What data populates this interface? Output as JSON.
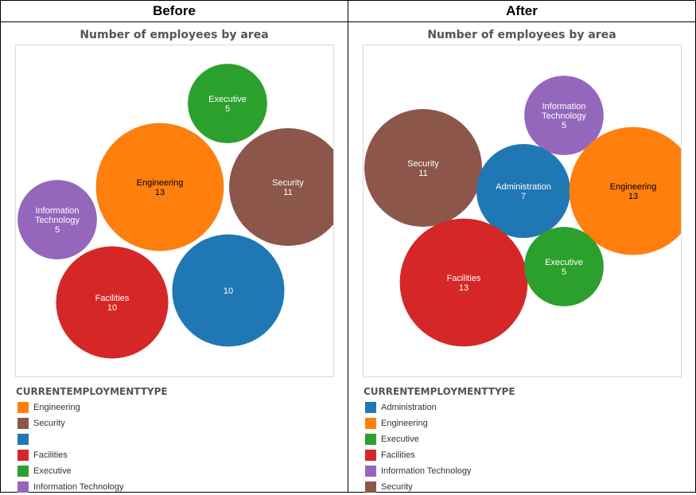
{
  "panels": [
    {
      "header": "Before",
      "chart_title": "Number of employees by area",
      "legend_title": "CURRENTEMPLOYMENTTYPE",
      "legend": [
        {
          "label": "Engineering",
          "color": "#ff7f0e"
        },
        {
          "label": "Security",
          "color": "#8c564b"
        },
        {
          "label": "",
          "color": "#1f77b4"
        },
        {
          "label": "Facilities",
          "color": "#d62728"
        },
        {
          "label": "Executive",
          "color": "#2ca02c"
        },
        {
          "label": "Information Technology",
          "color": "#9467bd"
        }
      ]
    },
    {
      "header": "After",
      "chart_title": "Number of employees by area",
      "legend_title": "CURRENTEMPLOYMENTTYPE",
      "legend": [
        {
          "label": "Administration",
          "color": "#1f77b4"
        },
        {
          "label": "Engineering",
          "color": "#ff7f0e"
        },
        {
          "label": "Executive",
          "color": "#2ca02c"
        },
        {
          "label": "Facilities",
          "color": "#d62728"
        },
        {
          "label": "Information Technology",
          "color": "#9467bd"
        },
        {
          "label": "Security",
          "color": "#8c564b"
        }
      ]
    }
  ],
  "chart_data": [
    {
      "type": "bubble",
      "title": "Number of employees by area",
      "series": [
        {
          "name": "Executive",
          "value": 5,
          "color": "#2ca02c",
          "label_lines": [
            "Executive",
            "5"
          ],
          "label_color": "#ffffff"
        },
        {
          "name": "Engineering",
          "value": 13,
          "color": "#ff7f0e",
          "label_lines": [
            "Engineering",
            "13"
          ],
          "label_color": "#000000"
        },
        {
          "name": "Security",
          "value": 11,
          "color": "#8c564b",
          "label_lines": [
            "Security",
            "11"
          ],
          "label_color": "#ffffff"
        },
        {
          "name": "Information Technology",
          "value": 5,
          "color": "#9467bd",
          "label_lines": [
            "Information",
            "Technology",
            "5"
          ],
          "label_color": "#ffffff"
        },
        {
          "name": "Facilities",
          "value": 10,
          "color": "#d62728",
          "label_lines": [
            "Facilities",
            "10"
          ],
          "label_color": "#ffffff"
        },
        {
          "name": "",
          "value": 10,
          "color": "#1f77b4",
          "label_lines": [
            "10"
          ],
          "label_color": "#ffffff"
        }
      ]
    },
    {
      "type": "bubble",
      "title": "Number of employees by area",
      "series": [
        {
          "name": "Information Technology",
          "value": 5,
          "color": "#9467bd",
          "label_lines": [
            "Information",
            "Technology",
            "5"
          ],
          "label_color": "#ffffff"
        },
        {
          "name": "Security",
          "value": 11,
          "color": "#8c564b",
          "label_lines": [
            "Security",
            "11"
          ],
          "label_color": "#ffffff"
        },
        {
          "name": "Administration",
          "value": 7,
          "color": "#1f77b4",
          "label_lines": [
            "Administration",
            "7"
          ],
          "label_color": "#ffffff"
        },
        {
          "name": "Engineering",
          "value": 13,
          "color": "#ff7f0e",
          "label_lines": [
            "Engineering",
            "13"
          ],
          "label_color": "#000000"
        },
        {
          "name": "Facilities",
          "value": 13,
          "color": "#d62728",
          "label_lines": [
            "Facilities",
            "13"
          ],
          "label_color": "#ffffff"
        },
        {
          "name": "Executive",
          "value": 5,
          "color": "#2ca02c",
          "label_lines": [
            "Executive",
            "5"
          ],
          "label_color": "#ffffff"
        }
      ]
    }
  ]
}
